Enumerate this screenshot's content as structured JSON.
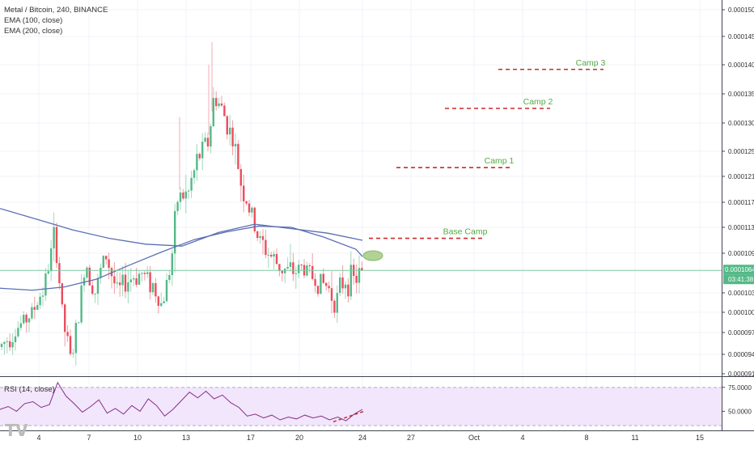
{
  "legend": {
    "symbol": "Metal / Bitcoin, 240, BINANCE",
    "ema100": "EMA (100, close)",
    "ema200": "EMA (200, close)"
  },
  "rsi_label": "RSI (14, close)",
  "watermark": "TV",
  "colors": {
    "bull": "#53b987",
    "bear": "#eb4d5c",
    "ema": "#5b6fb3",
    "current_line": "#7ec8a3",
    "target_line": "#cc2b2b",
    "target_text": "#55aa44",
    "rsi_line": "#8a2d8a",
    "rsi_band": "#f1e6fb"
  },
  "chart_data": [
    {
      "type": "candlestick",
      "title": "Metal / Bitcoin, 240, BINANCE",
      "x_ticks": [
        "4",
        "7",
        "10",
        "13",
        "17",
        "20",
        "24",
        "27",
        "Oct",
        "4",
        "8",
        "11",
        "15"
      ],
      "y_ticks": [
        "0.0001500",
        "0.0001450",
        "0.0001400",
        "0.0001350",
        "0.0001300",
        "0.0001250",
        "0.0001210",
        "0.0001170",
        "0.0001130",
        "0.0001090",
        "0.0001030",
        "0.0001000",
        "0.0000970",
        "0.0000940",
        "0.0000912"
      ],
      "current_price": "0.0001064",
      "countdown": "03:41:38",
      "series": [
        {
          "name": "EMA (100, close)",
          "values": [
            0.0001037,
            0.0001034,
            0.0001039,
            0.0001051,
            0.0001072,
            0.0001092,
            0.0001111,
            0.0001123,
            0.0001132,
            0.000113,
            0.0001115,
            0.0001096,
            0.0001085
          ]
        },
        {
          "name": "EMA (200, close)",
          "values": [
            0.000116,
            0.0001143,
            0.0001126,
            0.0001113,
            0.0001104,
            0.0001101,
            0.0001122,
            0.0001135,
            0.0001128,
            0.0001121,
            0.000111
          ]
        }
      ],
      "annotations": [
        {
          "label": "Base Camp",
          "value": 0.0001113
        },
        {
          "label": "Camp 1",
          "value": 0.0001224
        },
        {
          "label": "Camp 2",
          "value": 0.0001325
        },
        {
          "label": "Camp 3",
          "value": 0.0001392
        }
      ]
    },
    {
      "type": "line",
      "title": "RSI (14, close)",
      "y_ticks": [
        "75.0000",
        "50.0000"
      ],
      "ylim": [
        30,
        85
      ],
      "series": [
        {
          "name": "RSI (14, close)",
          "values": [
            52,
            55,
            50,
            58,
            60,
            54,
            57,
            80,
            66,
            58,
            49,
            55,
            62,
            48,
            53,
            47,
            56,
            50,
            63,
            56,
            45,
            52,
            61,
            70,
            64,
            71,
            63,
            67,
            59,
            54,
            45,
            47,
            43,
            46,
            41,
            44,
            42,
            46,
            43,
            45,
            41,
            44,
            40,
            47,
            52
          ]
        }
      ]
    }
  ]
}
